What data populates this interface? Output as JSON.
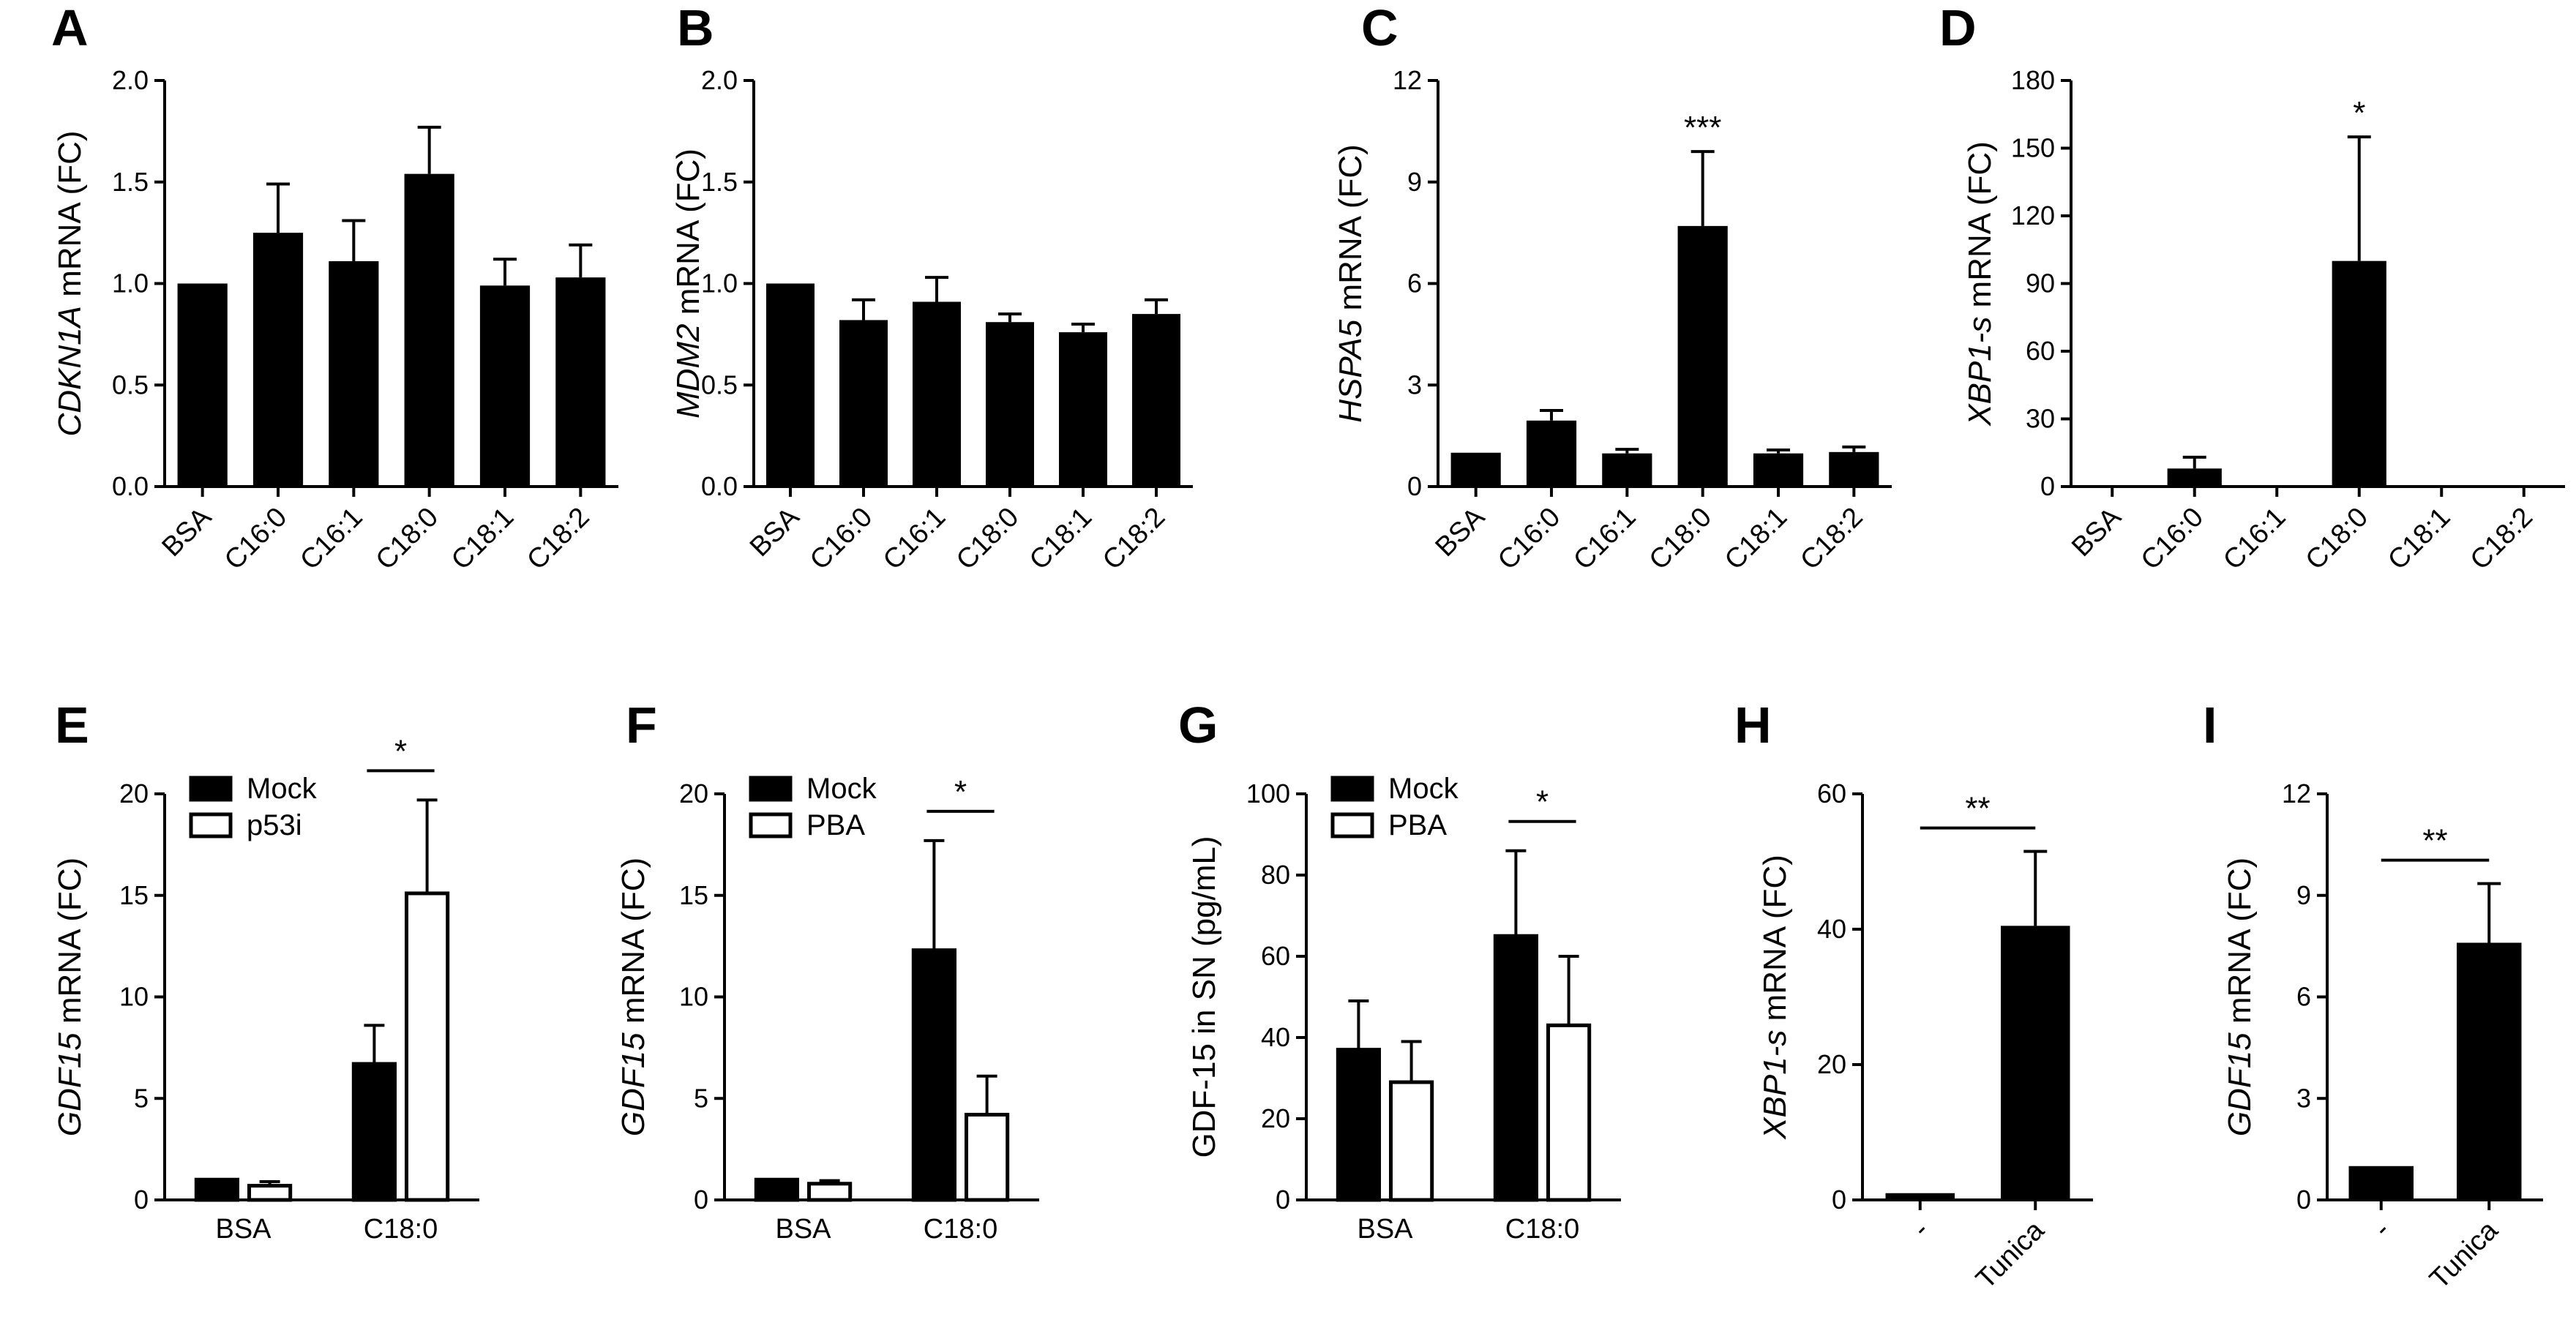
{
  "chart_data": [
    {
      "panel": "A",
      "type": "bar",
      "gene": "CDKN1A",
      "ylabel_suffix": " mRNA (FC)",
      "categories": [
        "BSA",
        "C16:0",
        "C16:1",
        "C18:0",
        "C18:1",
        "C18:2"
      ],
      "values": [
        1.0,
        1.25,
        1.11,
        1.54,
        0.99,
        1.03
      ],
      "errors": [
        0,
        0.24,
        0.2,
        0.23,
        0.13,
        0.16
      ],
      "ylim": [
        0,
        2.0
      ],
      "yticks": [
        "0.0",
        "0.5",
        "1.0",
        "1.5",
        "2.0"
      ],
      "significance": []
    },
    {
      "panel": "B",
      "type": "bar",
      "gene": "MDM2",
      "ylabel_suffix": " mRNA (FC)",
      "categories": [
        "BSA",
        "C16:0",
        "C16:1",
        "C18:0",
        "C18:1",
        "C18:2"
      ],
      "values": [
        1.0,
        0.82,
        0.91,
        0.81,
        0.76,
        0.85
      ],
      "errors": [
        0,
        0.1,
        0.12,
        0.04,
        0.04,
        0.07
      ],
      "ylim": [
        0,
        2.0
      ],
      "yticks": [
        "0.0",
        "0.5",
        "1.0",
        "1.5",
        "2.0"
      ],
      "significance": []
    },
    {
      "panel": "C",
      "type": "bar",
      "gene": "HSPA5",
      "ylabel_suffix": " mRNA (FC)",
      "categories": [
        "BSA",
        "C16:0",
        "C16:1",
        "C18:0",
        "C18:1",
        "C18:2"
      ],
      "values": [
        1.0,
        1.95,
        0.98,
        7.7,
        0.98,
        1.02
      ],
      "errors": [
        0,
        0.3,
        0.12,
        2.2,
        0.1,
        0.15
      ],
      "ylim": [
        0,
        12
      ],
      "yticks": [
        "0",
        "3",
        "6",
        "9",
        "12"
      ],
      "significance": [
        {
          "index": 3,
          "label": "***"
        }
      ]
    },
    {
      "panel": "D",
      "type": "bar",
      "gene": "XBP1-s",
      "ylabel_suffix": " mRNA (FC)",
      "categories": [
        "BSA",
        "C16:0",
        "C16:1",
        "C18:0",
        "C18:1",
        "C18:2"
      ],
      "values": [
        0,
        8,
        0.5,
        100,
        0.5,
        0.5
      ],
      "errors": [
        0,
        5,
        0,
        55,
        0,
        0
      ],
      "ylim": [
        0,
        180
      ],
      "yticks": [
        "0",
        "30",
        "60",
        "90",
        "120",
        "150",
        "180"
      ],
      "significance": [
        {
          "index": 3,
          "label": "*"
        }
      ]
    },
    {
      "panel": "E",
      "type": "grouped-bar",
      "gene": "GDF15",
      "ylabel_suffix": " mRNA (FC)",
      "categories": [
        "BSA",
        "C18:0"
      ],
      "series": [
        {
          "name": "Mock",
          "values": [
            1.0,
            6.7
          ],
          "errors": [
            0,
            1.9
          ]
        },
        {
          "name": "p53i",
          "values": [
            0.7,
            15.1
          ],
          "errors": [
            0.2,
            4.6
          ]
        }
      ],
      "ylim": [
        0,
        20
      ],
      "yticks": [
        "0",
        "5",
        "10",
        "15",
        "20"
      ],
      "bracket_label": "*"
    },
    {
      "panel": "F",
      "type": "grouped-bar",
      "gene": "GDF15",
      "ylabel_suffix": " mRNA (FC)",
      "categories": [
        "BSA",
        "C18:0"
      ],
      "series": [
        {
          "name": "Mock",
          "values": [
            1.0,
            12.3
          ],
          "errors": [
            0,
            5.4
          ]
        },
        {
          "name": "PBA",
          "values": [
            0.8,
            4.2
          ],
          "errors": [
            0.15,
            1.9
          ]
        }
      ],
      "ylim": [
        0,
        20
      ],
      "yticks": [
        "0",
        "5",
        "10",
        "15",
        "20"
      ],
      "bracket_label": "*"
    },
    {
      "panel": "G",
      "type": "grouped-bar",
      "gene": "",
      "ylabel_suffix": "GDF-15 in SN (pg/mL)",
      "categories": [
        "BSA",
        "C18:0"
      ],
      "series": [
        {
          "name": "Mock",
          "values": [
            37,
            65
          ],
          "errors": [
            12,
            21
          ]
        },
        {
          "name": "PBA",
          "values": [
            29,
            43
          ],
          "errors": [
            10,
            17
          ]
        }
      ],
      "ylim": [
        0,
        100
      ],
      "yticks": [
        "0",
        "20",
        "40",
        "60",
        "80",
        "100"
      ],
      "bracket_label": "*"
    },
    {
      "panel": "H",
      "type": "bar",
      "gene": "XBP1-s",
      "ylabel_suffix": " mRNA (FC)",
      "categories": [
        "-",
        "Tunica"
      ],
      "values": [
        1.0,
        40.5
      ],
      "errors": [
        0,
        11
      ],
      "ylim": [
        0,
        60
      ],
      "yticks": [
        "0",
        "20",
        "40",
        "60"
      ],
      "bracket_label": "**"
    },
    {
      "panel": "I",
      "type": "bar",
      "gene": "GDF15",
      "ylabel_suffix": " mRNA (FC)",
      "categories": [
        "-",
        "Tunica"
      ],
      "values": [
        1.0,
        7.6
      ],
      "errors": [
        0,
        1.75
      ],
      "ylim": [
        0,
        12
      ],
      "yticks": [
        "0",
        "3",
        "6",
        "9",
        "12"
      ],
      "bracket_label": "**"
    }
  ],
  "colors": {
    "bar_fill": "#000000",
    "open_bar_fill": "#ffffff",
    "axis": "#000000"
  }
}
